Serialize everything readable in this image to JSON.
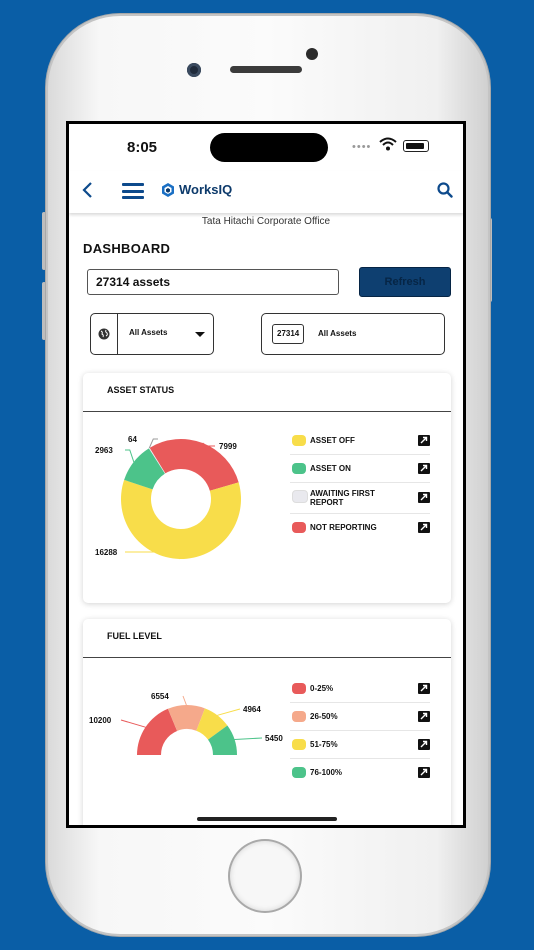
{
  "status_bar": {
    "time": "8:05"
  },
  "app_bar": {
    "logo_text": "WorksIQ"
  },
  "site_name": "Tata Hitachi Corporate Office",
  "dashboard": {
    "title": "DASHBOARD",
    "assets_value": "27314 assets",
    "refresh_label": "Refresh",
    "group_filter": "All Assets",
    "asset_count": "27314",
    "asset_filter": "All Assets"
  },
  "asset_status": {
    "title": "ASSET STATUS",
    "legend": [
      {
        "label": "ASSET OFF",
        "color": "#f8dd4a"
      },
      {
        "label": "ASSET ON",
        "color": "#4cc38a"
      },
      {
        "label": "AWAITING FIRST REPORT",
        "color": "#e9e9ee"
      },
      {
        "label": "NOT REPORTING",
        "color": "#e85a5a"
      }
    ]
  },
  "fuel_level": {
    "title": "FUEL LEVEL",
    "legend": [
      {
        "label": "0-25%",
        "color": "#e85a5a"
      },
      {
        "label": "26-50%",
        "color": "#f5a98b"
      },
      {
        "label": "51-75%",
        "color": "#f8dd4a"
      },
      {
        "label": "76-100%",
        "color": "#4cc38a"
      }
    ]
  },
  "chart_data": [
    {
      "type": "pie",
      "title": "ASSET STATUS",
      "categories": [
        "ASSET OFF",
        "ASSET ON",
        "AWAITING FIRST REPORT",
        "NOT REPORTING"
      ],
      "values": [
        16288,
        2963,
        64,
        7999
      ],
      "colors": [
        "#f8dd4a",
        "#4cc38a",
        "#e9e9ee",
        "#e85a5a"
      ],
      "donut": true
    },
    {
      "type": "pie",
      "title": "FUEL LEVEL",
      "categories": [
        "0-25%",
        "26-50%",
        "51-75%",
        "76-100%"
      ],
      "values": [
        10200,
        6554,
        4964,
        5450
      ],
      "colors": [
        "#e85a5a",
        "#f5a98b",
        "#f8dd4a",
        "#4cc38a"
      ],
      "half_donut": true
    }
  ]
}
